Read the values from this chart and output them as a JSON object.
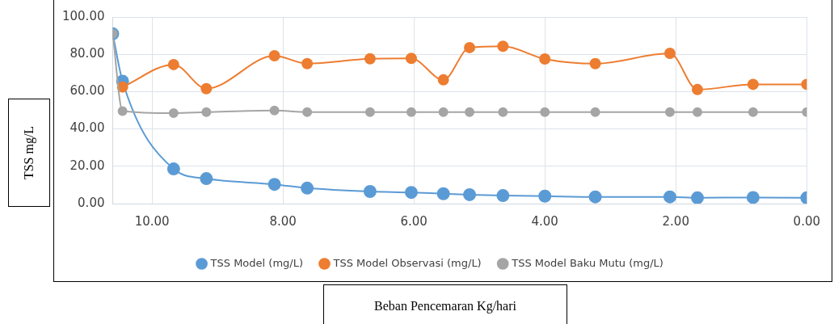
{
  "chart_data": {
    "type": "line",
    "annotations": [
      "Beban Pencemaran Kg/hari"
    ],
    "ylabel": "TSS mg/L",
    "x": [
      10.6,
      10.45,
      9.67,
      9.17,
      8.13,
      7.63,
      6.67,
      6.04,
      5.55,
      5.15,
      4.64,
      4.0,
      3.23,
      2.09,
      1.67,
      0.82,
      0
    ],
    "series": [
      {
        "name": "TSS Model (mg/L)",
        "color": "#5b9bd5",
        "values": [
          91,
          65.6,
          18.6,
          13.4,
          10.3,
          8.3,
          6.5,
          6.0,
          5.3,
          4.8,
          4.3,
          4.0,
          3.6,
          3.6,
          3.1,
          3.3,
          3.1
        ]
      },
      {
        "name": "TSS Model Observasi (mg/L)",
        "color": "#ed7d31",
        "values": [
          null,
          62.5,
          74.5,
          61.6,
          79.2,
          75,
          77.6,
          77.8,
          66.3,
          83.6,
          84.3,
          77.5,
          75,
          80.5,
          61.1,
          63.9,
          63.9
        ]
      },
      {
        "name": "TSS Model Baku Mutu (mg/L)",
        "color": "#a5a5a5",
        "values": [
          91,
          49.6,
          48.5,
          49,
          49.9,
          49,
          49,
          49,
          49,
          49,
          49,
          49,
          49,
          49,
          49,
          49,
          49
        ]
      }
    ],
    "xlim": [
      10.6,
      0
    ],
    "xticks": [
      {
        "value": 10,
        "label": "10.00"
      },
      {
        "value": 8,
        "label": "8.00"
      },
      {
        "value": 6,
        "label": "6.00"
      },
      {
        "value": 4,
        "label": "4.00"
      },
      {
        "value": 2,
        "label": "2.00"
      },
      {
        "value": 0,
        "label": "0.00"
      }
    ],
    "ylim": [
      0,
      100
    ],
    "yticks": [
      {
        "value": 0,
        "label": "0.00"
      },
      {
        "value": 20,
        "label": "20.00"
      },
      {
        "value": 40,
        "label": "40.00"
      },
      {
        "value": 60,
        "label": "60.00"
      },
      {
        "value": 80,
        "label": "80.00"
      },
      {
        "value": 100,
        "label": "100.00"
      }
    ],
    "grid": true,
    "legend": "bottom",
    "marker": "circle",
    "line_style": "solid"
  }
}
